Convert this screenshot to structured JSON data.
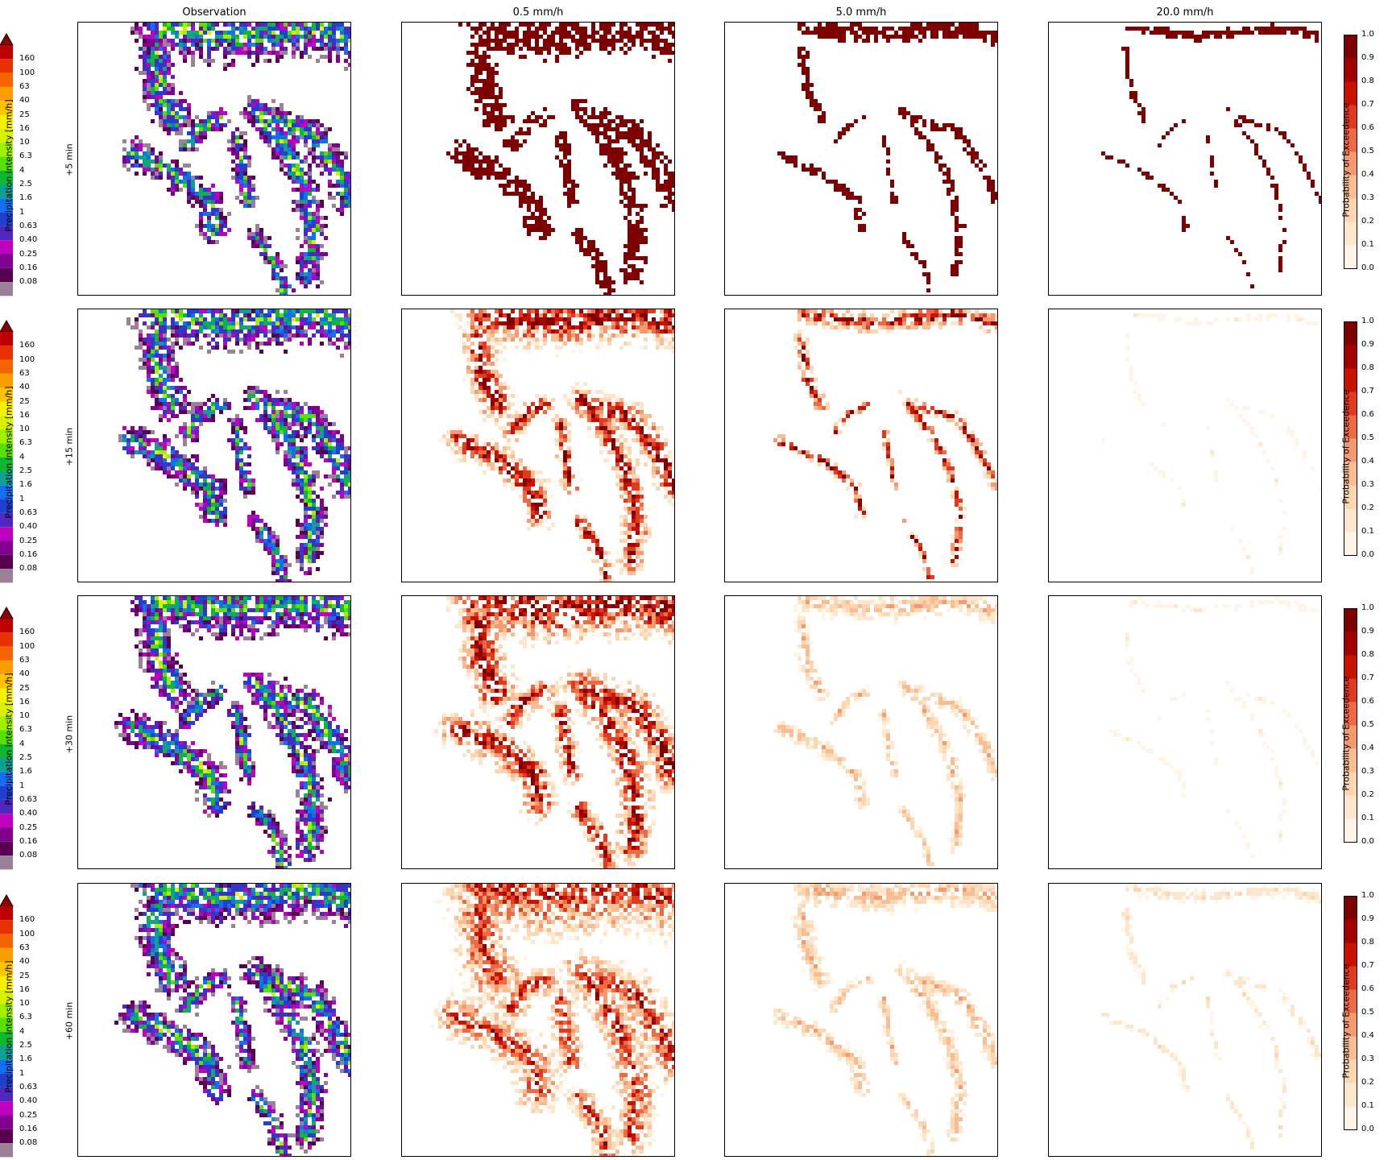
{
  "column_titles": [
    "Observation",
    "0.5 mm/h",
    "5.0 mm/h",
    "20.0 mm/h"
  ],
  "row_labels": [
    "+5 min",
    "+15 min",
    "+30 min",
    "+60 min"
  ],
  "obs_colorbar": {
    "label": "Precipitation intensity [mm/h]",
    "ticks": [
      "160",
      "100",
      "63",
      "40",
      "25",
      "16",
      "10",
      "6.3",
      "4",
      "2.5",
      "1.6",
      "1",
      "0.63",
      "0.40",
      "0.25",
      "0.16",
      "0.08"
    ],
    "colors": [
      "#c00000",
      "#e83000",
      "#f46400",
      "#f99d00",
      "#fbc400",
      "#f5f000",
      "#d8f000",
      "#a0f000",
      "#58e000",
      "#10b830",
      "#10a090",
      "#1070f0",
      "#2040d0",
      "#5028c0",
      "#c000c0",
      "#800090",
      "#5a0050",
      "#9a8098"
    ],
    "extend": "max"
  },
  "prob_colorbar": {
    "label": "Probability of Exceedence",
    "ticks": [
      "1.0",
      "0.9",
      "0.8",
      "0.7",
      "0.6",
      "0.5",
      "0.4",
      "0.3",
      "0.2",
      "0.1",
      "0.0"
    ],
    "colors": [
      "#7f0000",
      "#a50000",
      "#c91200",
      "#e03a20",
      "#ee6a45",
      "#f59a70",
      "#f8bd93",
      "#fbd6b0",
      "#fde7cc",
      "#fff4e6"
    ]
  },
  "chart_data": [
    {
      "type": "heatmap",
      "title": "Observation",
      "row": "+5 min",
      "value_label": "Precipitation intensity [mm/h]"
    },
    {
      "type": "heatmap",
      "title": "0.5 mm/h",
      "row": "+5 min",
      "value_label": "Probability of Exceedence",
      "peak_probability": 1.0
    },
    {
      "type": "heatmap",
      "title": "5.0 mm/h",
      "row": "+5 min",
      "value_label": "Probability of Exceedence",
      "peak_probability": 1.0
    },
    {
      "type": "heatmap",
      "title": "20.0 mm/h",
      "row": "+5 min",
      "value_label": "Probability of Exceedence",
      "peak_probability": 1.0
    },
    {
      "type": "heatmap",
      "title": "Observation",
      "row": "+15 min",
      "value_label": "Precipitation intensity [mm/h]"
    },
    {
      "type": "heatmap",
      "title": "0.5 mm/h",
      "row": "+15 min",
      "value_label": "Probability of Exceedence",
      "peak_probability": 1.0
    },
    {
      "type": "heatmap",
      "title": "5.0 mm/h",
      "row": "+15 min",
      "value_label": "Probability of Exceedence",
      "peak_probability": 1.0
    },
    {
      "type": "heatmap",
      "title": "20.0 mm/h",
      "row": "+15 min",
      "value_label": "Probability of Exceedence",
      "peak_probability": 0.1
    },
    {
      "type": "heatmap",
      "title": "Observation",
      "row": "+30 min",
      "value_label": "Precipitation intensity [mm/h]"
    },
    {
      "type": "heatmap",
      "title": "0.5 mm/h",
      "row": "+30 min",
      "value_label": "Probability of Exceedence",
      "peak_probability": 1.0
    },
    {
      "type": "heatmap",
      "title": "5.0 mm/h",
      "row": "+30 min",
      "value_label": "Probability of Exceedence",
      "peak_probability": 0.4
    },
    {
      "type": "heatmap",
      "title": "20.0 mm/h",
      "row": "+30 min",
      "value_label": "Probability of Exceedence",
      "peak_probability": 0.1
    },
    {
      "type": "heatmap",
      "title": "Observation",
      "row": "+60 min",
      "value_label": "Precipitation intensity [mm/h]"
    },
    {
      "type": "heatmap",
      "title": "0.5 mm/h",
      "row": "+60 min",
      "value_label": "Probability of Exceedence",
      "peak_probability": 0.8
    },
    {
      "type": "heatmap",
      "title": "5.0 mm/h",
      "row": "+60 min",
      "value_label": "Probability of Exceedence",
      "peak_probability": 0.4
    },
    {
      "type": "heatmap",
      "title": "20.0 mm/h",
      "row": "+60 min",
      "value_label": "Probability of Exceedence",
      "peak_probability": 0.2
    }
  ]
}
